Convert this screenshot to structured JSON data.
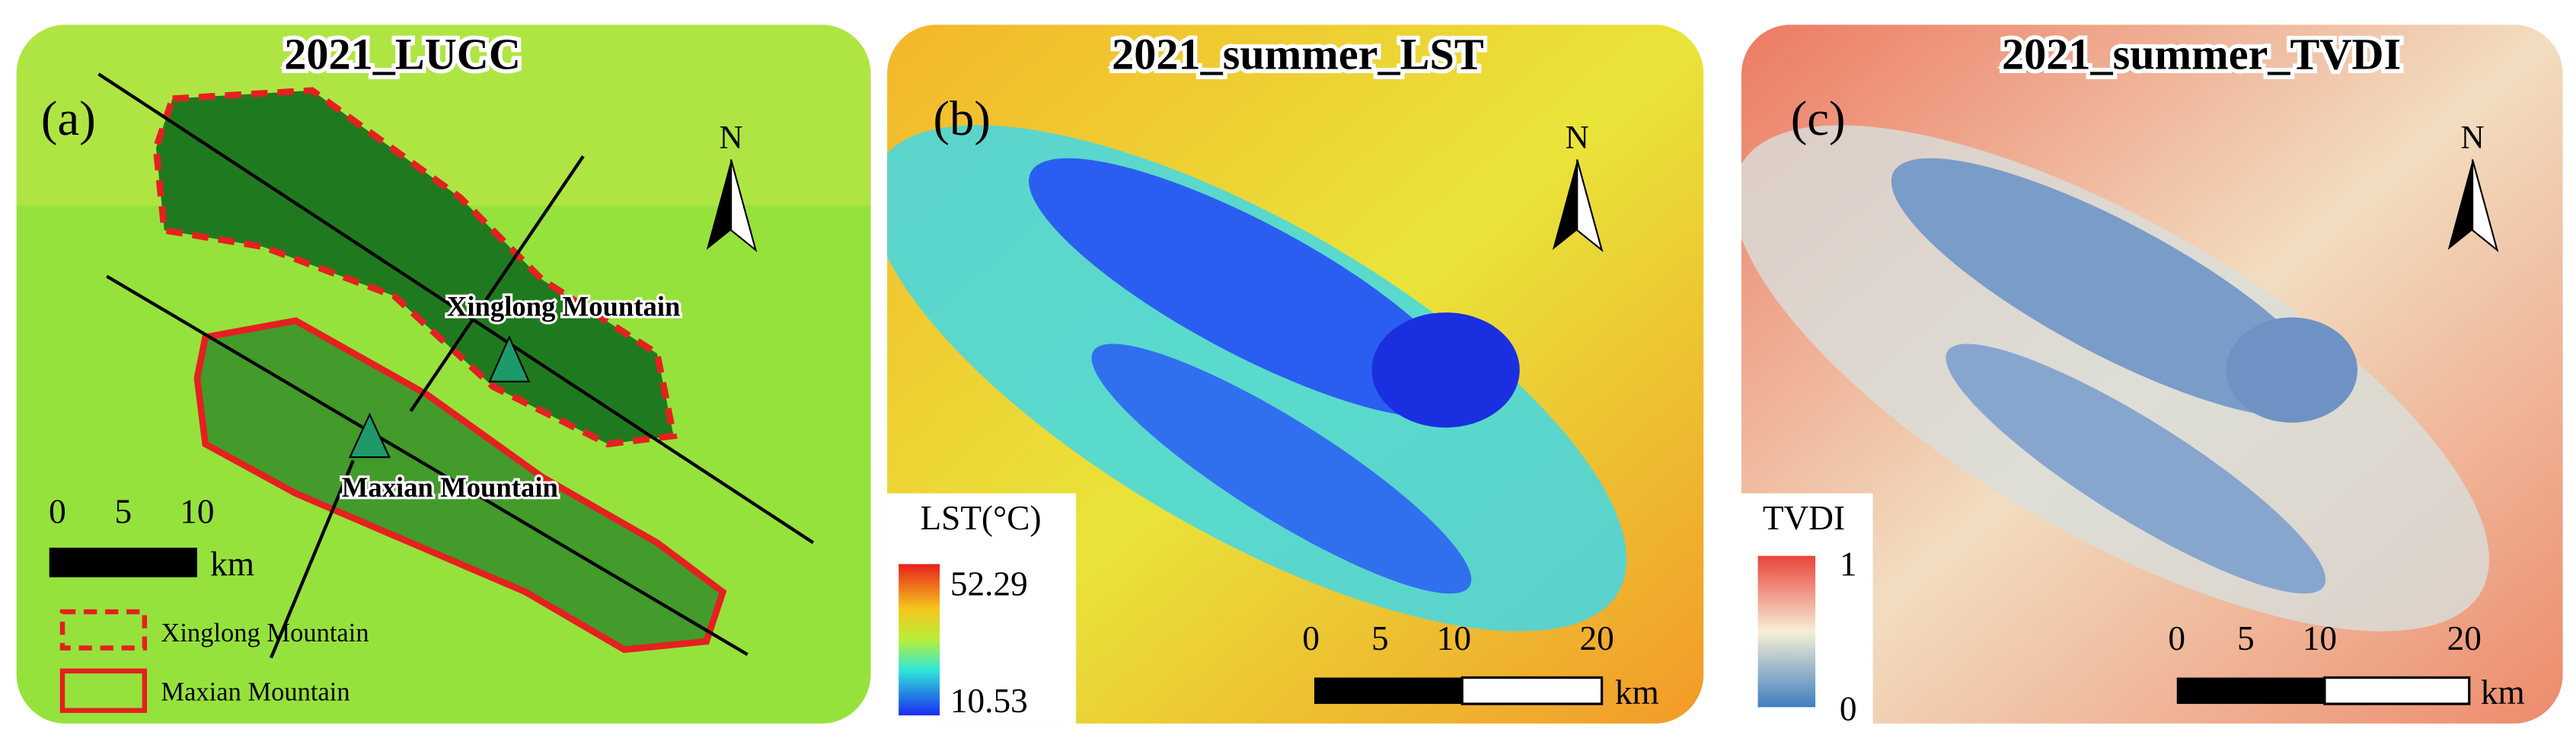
{
  "panels": [
    {
      "title": "2021_LUCC",
      "label": "(a)",
      "north": "N",
      "annotations": [
        "Xinglong Mountain",
        "Maxian Mountain"
      ],
      "scale": {
        "ticks": [
          "0",
          "5",
          "10"
        ],
        "unit": "km"
      },
      "legend": [
        "Xinglong Mountain",
        "Maxian Mountain"
      ]
    },
    {
      "title": "2021_summer_LST",
      "label": "(b)",
      "north": "N",
      "legend": {
        "title": "LST(°C)",
        "max": "52.29",
        "min": "10.53"
      },
      "scale": {
        "ticks": [
          "0",
          "5",
          "10",
          "20"
        ],
        "unit": "km"
      }
    },
    {
      "title": "2021_summer_TVDI",
      "label": "(c)",
      "north": "N",
      "legend": {
        "title": "TVDI",
        "max": "1",
        "min": "0"
      },
      "scale": {
        "ticks": [
          "0",
          "5",
          "10",
          "20"
        ],
        "unit": "km"
      }
    }
  ]
}
